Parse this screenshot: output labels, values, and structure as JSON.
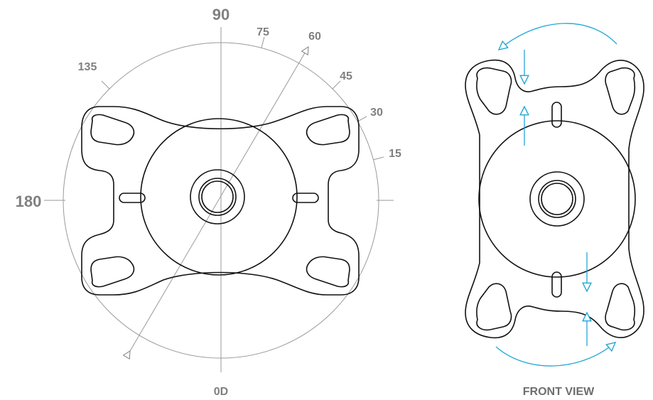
{
  "diagram": {
    "left_view": {
      "angle_labels": {
        "a90": "90",
        "a75": "75",
        "a60": "60",
        "a45": "45",
        "a30": "30",
        "a15": "15",
        "a135": "135",
        "a180": "180",
        "a0": "0D"
      }
    },
    "right_view": {
      "caption": "FRONT VIEW"
    },
    "colors": {
      "label_gray": "#808080",
      "outline": "#111111",
      "guide_gray": "#9a9a9a",
      "arrow_blue": "#22a7d6"
    }
  }
}
